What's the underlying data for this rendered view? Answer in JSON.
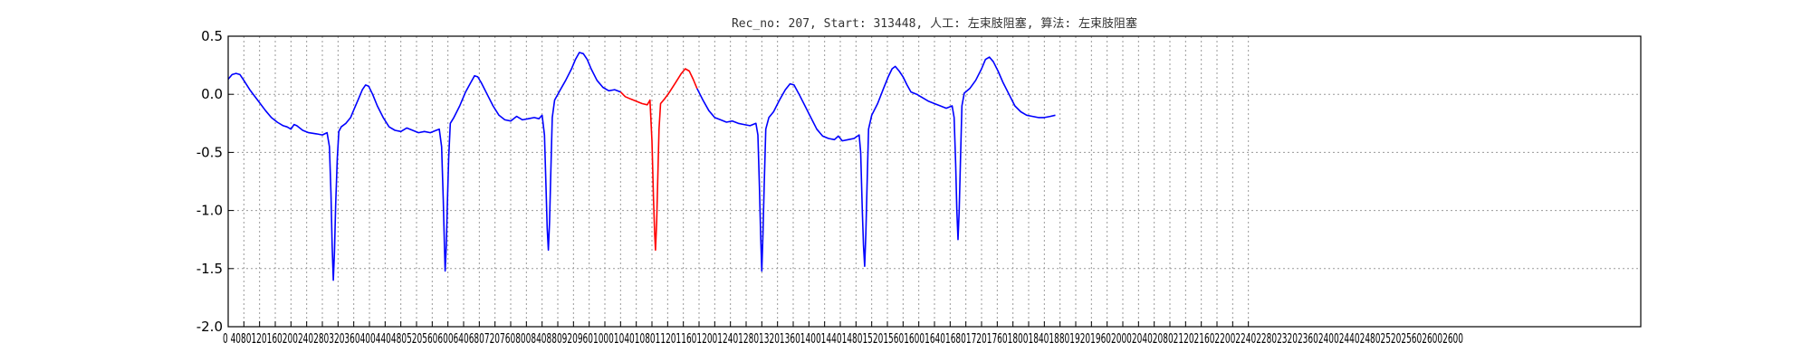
{
  "chart_data": {
    "type": "line",
    "title": "Rec_no: 207, Start: 313448, 人工: 左束肢阻塞, 算法: 左束肢阻塞",
    "xlim": [
      0,
      3600
    ],
    "ylim": [
      -2.0,
      0.5
    ],
    "y_ticks": [
      0.5,
      0.0,
      -0.5,
      -1.0,
      -1.5,
      -2.0
    ],
    "y_tick_labels": [
      "0.5",
      "0.0",
      "-0.5",
      "-1.0",
      "-1.5",
      "-2.0"
    ],
    "x_ticks": [
      0,
      40,
      80,
      120,
      160,
      200,
      240,
      280,
      320,
      360,
      400,
      440,
      480,
      520,
      560,
      600,
      640,
      680,
      720,
      760,
      800,
      840,
      880,
      920,
      960,
      1000,
      1040,
      1080,
      1120,
      1160,
      1200,
      1240,
      1280,
      1320,
      1360,
      1400,
      1440,
      1480,
      1520,
      1560,
      1600,
      1640,
      1680,
      1720,
      1760,
      1800,
      1840,
      1880,
      1920,
      1960,
      2000,
      2040,
      2080,
      2120,
      2160,
      2200,
      2240,
      2280,
      2320,
      2360,
      2400,
      2440,
      2480,
      2520,
      2560,
      2600
    ],
    "x_tick_labels_text": "0 4080120160200240280320360400440480520560600640680720760800840880920960100010401080112011601200124012801320136014001440148015201560160016401680172017601800184018801920196020002040208021202160220022402280232023602400244024802520256026002600",
    "grid": true,
    "series": [
      {
        "color": "#0000ff",
        "points": [
          [
            0,
            0.13
          ],
          [
            10,
            0.17
          ],
          [
            20,
            0.18
          ],
          [
            30,
            0.17
          ],
          [
            40,
            0.12
          ],
          [
            55,
            0.04
          ],
          [
            75,
            -0.05
          ],
          [
            95,
            -0.14
          ],
          [
            110,
            -0.2
          ],
          [
            125,
            -0.24
          ],
          [
            140,
            -0.27
          ],
          [
            150,
            -0.28
          ],
          [
            160,
            -0.3
          ],
          [
            168,
            -0.26
          ],
          [
            175,
            -0.27
          ],
          [
            190,
            -0.31
          ],
          [
            205,
            -0.33
          ],
          [
            225,
            -0.34
          ],
          [
            240,
            -0.35
          ],
          [
            252,
            -0.33
          ],
          [
            258,
            -0.45
          ],
          [
            262,
            -0.85
          ],
          [
            265,
            -1.3
          ],
          [
            268,
            -1.6
          ],
          [
            271,
            -1.35
          ],
          [
            274,
            -0.95
          ],
          [
            278,
            -0.55
          ],
          [
            282,
            -0.32
          ],
          [
            288,
            -0.28
          ],
          [
            300,
            -0.25
          ],
          [
            312,
            -0.2
          ],
          [
            322,
            -0.12
          ],
          [
            332,
            -0.04
          ],
          [
            342,
            0.04
          ],
          [
            350,
            0.08
          ],
          [
            358,
            0.07
          ],
          [
            368,
            0.0
          ],
          [
            380,
            -0.1
          ],
          [
            395,
            -0.2
          ],
          [
            410,
            -0.28
          ],
          [
            425,
            -0.31
          ],
          [
            440,
            -0.32
          ],
          [
            455,
            -0.29
          ],
          [
            470,
            -0.31
          ],
          [
            485,
            -0.33
          ],
          [
            500,
            -0.32
          ],
          [
            515,
            -0.33
          ],
          [
            530,
            -0.31
          ],
          [
            538,
            -0.3
          ],
          [
            544,
            -0.45
          ],
          [
            548,
            -0.9
          ],
          [
            551,
            -1.3
          ],
          [
            553,
            -1.52
          ],
          [
            556,
            -1.3
          ],
          [
            559,
            -0.9
          ],
          [
            562,
            -0.55
          ],
          [
            566,
            -0.25
          ],
          [
            575,
            -0.2
          ],
          [
            590,
            -0.1
          ],
          [
            605,
            0.02
          ],
          [
            618,
            0.1
          ],
          [
            628,
            0.16
          ],
          [
            636,
            0.15
          ],
          [
            645,
            0.1
          ],
          [
            660,
            0.0
          ],
          [
            675,
            -0.1
          ],
          [
            690,
            -0.18
          ],
          [
            705,
            -0.22
          ],
          [
            720,
            -0.23
          ],
          [
            735,
            -0.19
          ],
          [
            750,
            -0.22
          ],
          [
            765,
            -0.21
          ],
          [
            780,
            -0.2
          ],
          [
            792,
            -0.21
          ],
          [
            800,
            -0.18
          ],
          [
            806,
            -0.35
          ],
          [
            810,
            -0.8
          ],
          [
            813,
            -1.15
          ],
          [
            816,
            -1.34
          ],
          [
            819,
            -1.1
          ],
          [
            822,
            -0.7
          ],
          [
            826,
            -0.2
          ],
          [
            832,
            -0.05
          ],
          [
            845,
            0.03
          ],
          [
            860,
            0.12
          ],
          [
            875,
            0.22
          ],
          [
            885,
            0.3
          ],
          [
            895,
            0.36
          ],
          [
            905,
            0.35
          ],
          [
            915,
            0.3
          ],
          [
            925,
            0.22
          ],
          [
            940,
            0.12
          ],
          [
            955,
            0.06
          ],
          [
            970,
            0.03
          ],
          [
            985,
            0.04
          ],
          [
            1000,
            0.02
          ]
        ]
      },
      {
        "color": "#ff0000",
        "points": [
          [
            1000,
            0.02
          ],
          [
            1012,
            -0.02
          ],
          [
            1025,
            -0.04
          ],
          [
            1040,
            -0.06
          ],
          [
            1055,
            -0.08
          ],
          [
            1068,
            -0.09
          ],
          [
            1075,
            -0.05
          ],
          [
            1080,
            -0.4
          ],
          [
            1084,
            -0.9
          ],
          [
            1087,
            -1.2
          ],
          [
            1089,
            -1.34
          ],
          [
            1092,
            -1.1
          ],
          [
            1095,
            -0.7
          ],
          [
            1098,
            -0.3
          ],
          [
            1102,
            -0.08
          ],
          [
            1112,
            -0.04
          ],
          [
            1125,
            0.02
          ],
          [
            1140,
            0.1
          ],
          [
            1155,
            0.18
          ],
          [
            1165,
            0.22
          ],
          [
            1175,
            0.2
          ],
          [
            1185,
            0.13
          ],
          [
            1195,
            0.05
          ]
        ]
      },
      {
        "color": "#0000ff",
        "points": [
          [
            1195,
            0.05
          ],
          [
            1210,
            -0.05
          ],
          [
            1225,
            -0.14
          ],
          [
            1240,
            -0.2
          ],
          [
            1255,
            -0.22
          ],
          [
            1270,
            -0.24
          ],
          [
            1285,
            -0.23
          ],
          [
            1300,
            -0.25
          ],
          [
            1315,
            -0.26
          ],
          [
            1330,
            -0.27
          ],
          [
            1345,
            -0.25
          ],
          [
            1350,
            -0.35
          ],
          [
            1354,
            -0.8
          ],
          [
            1357,
            -1.2
          ],
          [
            1360,
            -1.52
          ],
          [
            1363,
            -1.2
          ],
          [
            1366,
            -0.8
          ],
          [
            1370,
            -0.3
          ],
          [
            1378,
            -0.2
          ],
          [
            1390,
            -0.15
          ],
          [
            1405,
            -0.05
          ],
          [
            1420,
            0.04
          ],
          [
            1432,
            0.09
          ],
          [
            1442,
            0.08
          ],
          [
            1455,
            0.0
          ],
          [
            1470,
            -0.1
          ],
          [
            1485,
            -0.2
          ],
          [
            1500,
            -0.3
          ],
          [
            1515,
            -0.36
          ],
          [
            1530,
            -0.38
          ],
          [
            1545,
            -0.39
          ],
          [
            1555,
            -0.36
          ],
          [
            1565,
            -0.4
          ],
          [
            1580,
            -0.39
          ],
          [
            1595,
            -0.38
          ],
          [
            1608,
            -0.35
          ],
          [
            1612,
            -0.5
          ],
          [
            1616,
            -1.0
          ],
          [
            1619,
            -1.3
          ],
          [
            1622,
            -1.48
          ],
          [
            1625,
            -1.2
          ],
          [
            1628,
            -0.8
          ],
          [
            1632,
            -0.3
          ],
          [
            1640,
            -0.18
          ],
          [
            1655,
            -0.08
          ],
          [
            1670,
            0.05
          ],
          [
            1682,
            0.15
          ],
          [
            1692,
            0.22
          ],
          [
            1700,
            0.24
          ],
          [
            1710,
            0.2
          ],
          [
            1720,
            0.15
          ],
          [
            1730,
            0.08
          ],
          [
            1740,
            0.02
          ],
          [
            1755,
            0.0
          ],
          [
            1770,
            -0.03
          ],
          [
            1785,
            -0.06
          ],
          [
            1800,
            -0.08
          ],
          [
            1815,
            -0.1
          ],
          [
            1830,
            -0.12
          ],
          [
            1845,
            -0.1
          ],
          [
            1850,
            -0.2
          ],
          [
            1854,
            -0.6
          ],
          [
            1857,
            -1.0
          ],
          [
            1860,
            -1.25
          ],
          [
            1863,
            -1.0
          ],
          [
            1866,
            -0.6
          ],
          [
            1870,
            -0.1
          ],
          [
            1876,
            0.01
          ],
          [
            1890,
            0.05
          ],
          [
            1905,
            0.12
          ],
          [
            1920,
            0.22
          ],
          [
            1930,
            0.3
          ],
          [
            1940,
            0.32
          ],
          [
            1950,
            0.28
          ],
          [
            1962,
            0.2
          ],
          [
            1975,
            0.1
          ],
          [
            1990,
            0.0
          ],
          [
            2005,
            -0.1
          ],
          [
            2020,
            -0.15
          ],
          [
            2035,
            -0.18
          ],
          [
            2050,
            -0.19
          ],
          [
            2065,
            -0.2
          ],
          [
            2080,
            -0.2
          ],
          [
            2095,
            -0.19
          ],
          [
            2108,
            -0.18
          ]
        ]
      }
    ]
  }
}
